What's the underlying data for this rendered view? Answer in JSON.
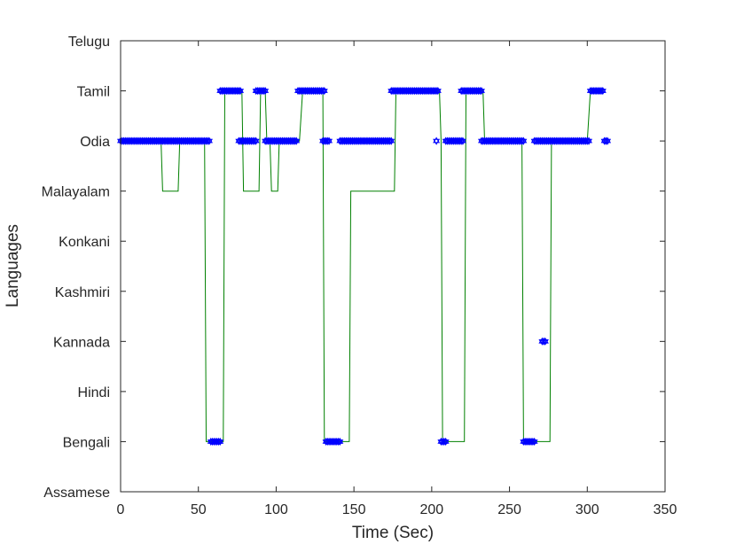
{
  "chart_data": {
    "type": "scatter",
    "title": "",
    "xlabel": "Time (Sec)",
    "ylabel": "Languages",
    "xlim": [
      0,
      350
    ],
    "ylim": [
      0,
      9
    ],
    "x_ticks": [
      0,
      50,
      100,
      150,
      200,
      250,
      300,
      350
    ],
    "y_categories": [
      "Assamese",
      "Bengali",
      "Hindi",
      "Kannada",
      "Kashmiri",
      "Konkani",
      "Malayalam",
      "Odia",
      "Tamil",
      "Telugu"
    ],
    "grid": false,
    "legend": "none",
    "series": [
      {
        "style": "green-step-line",
        "color": "#008000",
        "points": [
          [
            0,
            "Odia"
          ],
          [
            26,
            "Odia"
          ],
          [
            27,
            "Malayalam"
          ],
          [
            37,
            "Malayalam"
          ],
          [
            38,
            "Odia"
          ],
          [
            54,
            "Odia"
          ],
          [
            55,
            "Bengali"
          ],
          [
            66,
            "Bengali"
          ],
          [
            67,
            "Tamil"
          ],
          [
            78,
            "Tamil"
          ],
          [
            79,
            "Malayalam"
          ],
          [
            89,
            "Malayalam"
          ],
          [
            90,
            "Tamil"
          ],
          [
            93,
            "Tamil"
          ],
          [
            94,
            "Odia"
          ],
          [
            96,
            "Odia"
          ],
          [
            97,
            "Malayalam"
          ],
          [
            101,
            "Malayalam"
          ],
          [
            102,
            "Odia"
          ],
          [
            115,
            "Odia"
          ],
          [
            117,
            "Tamil"
          ],
          [
            130,
            "Tamil"
          ],
          [
            131,
            "Bengali"
          ],
          [
            147,
            "Bengali"
          ],
          [
            148,
            "Malayalam"
          ],
          [
            176,
            "Malayalam"
          ],
          [
            177,
            "Tamil"
          ],
          [
            205,
            "Tamil"
          ],
          [
            206,
            "Odia"
          ],
          [
            207,
            "Bengali"
          ],
          [
            221,
            "Bengali"
          ],
          [
            222,
            "Tamil"
          ],
          [
            233,
            "Tamil"
          ],
          [
            234,
            "Odia"
          ],
          [
            258,
            "Odia"
          ],
          [
            259,
            "Bengali"
          ],
          [
            276,
            "Bengali"
          ],
          [
            277,
            "Odia"
          ],
          [
            300,
            "Odia"
          ],
          [
            302,
            "Tamil"
          ],
          [
            310,
            "Tamil"
          ]
        ]
      },
      {
        "style": "blue-star-markers",
        "color": "#0000ff",
        "segments": [
          {
            "from": 0,
            "to": 57,
            "y": "Odia"
          },
          {
            "from": 58,
            "to": 64,
            "y": "Bengali"
          },
          {
            "from": 64,
            "to": 77,
            "y": "Tamil"
          },
          {
            "from": 76,
            "to": 87,
            "y": "Odia"
          },
          {
            "from": 87,
            "to": 93,
            "y": "Tamil"
          },
          {
            "from": 93,
            "to": 113,
            "y": "Odia"
          },
          {
            "from": 114,
            "to": 131,
            "y": "Tamil"
          },
          {
            "from": 130,
            "to": 134,
            "y": "Odia"
          },
          {
            "from": 132,
            "to": 141,
            "y": "Bengali"
          },
          {
            "from": 141,
            "to": 174,
            "y": "Odia"
          },
          {
            "from": 174,
            "to": 204,
            "y": "Tamil"
          },
          {
            "from": 203,
            "to": 203,
            "y": "Odia"
          },
          {
            "from": 206,
            "to": 209,
            "y": "Bengali"
          },
          {
            "from": 209,
            "to": 220,
            "y": "Odia"
          },
          {
            "from": 219,
            "to": 232,
            "y": "Tamil"
          },
          {
            "from": 232,
            "to": 259,
            "y": "Odia"
          },
          {
            "from": 259,
            "to": 266,
            "y": "Bengali"
          },
          {
            "from": 266,
            "to": 273,
            "y": "Odia"
          },
          {
            "from": 271,
            "to": 273,
            "y": "Kannada"
          },
          {
            "from": 274,
            "to": 301,
            "y": "Odia"
          },
          {
            "from": 302,
            "to": 310,
            "y": "Tamil"
          },
          {
            "from": 311,
            "to": 313,
            "y": "Odia"
          }
        ]
      }
    ]
  }
}
